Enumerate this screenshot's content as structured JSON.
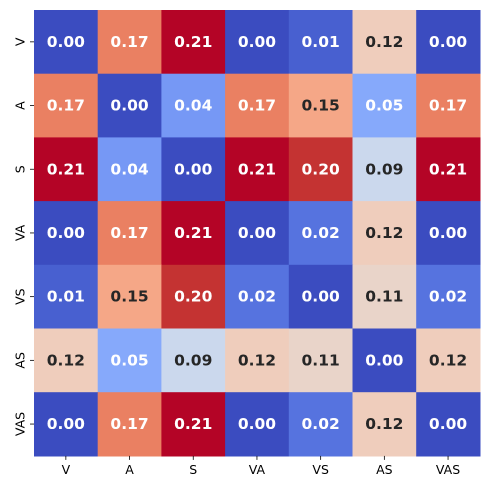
{
  "chart_data": {
    "type": "heatmap",
    "title": "",
    "xlabel": "",
    "ylabel": "",
    "x_categories": [
      "V",
      "A",
      "S",
      "VA",
      "VS",
      "AS",
      "VAS"
    ],
    "y_categories": [
      "V",
      "A",
      "S",
      "VA",
      "VS",
      "AS",
      "VAS"
    ],
    "values": [
      [
        0.0,
        0.17,
        0.21,
        0.0,
        0.01,
        0.12,
        0.0
      ],
      [
        0.17,
        0.0,
        0.04,
        0.17,
        0.15,
        0.05,
        0.17
      ],
      [
        0.21,
        0.04,
        0.0,
        0.21,
        0.2,
        0.09,
        0.21
      ],
      [
        0.0,
        0.17,
        0.21,
        0.0,
        0.02,
        0.12,
        0.0
      ],
      [
        0.01,
        0.15,
        0.2,
        0.02,
        0.0,
        0.11,
        0.02
      ],
      [
        0.12,
        0.05,
        0.09,
        0.12,
        0.11,
        0.0,
        0.12
      ],
      [
        0.0,
        0.17,
        0.21,
        0.0,
        0.02,
        0.12,
        0.0
      ]
    ],
    "value_labels": [
      [
        "0.00",
        "0.17",
        "0.21",
        "0.00",
        "0.01",
        "0.12",
        "0.00"
      ],
      [
        "0.17",
        "0.00",
        "0.04",
        "0.17",
        "0.15",
        "0.05",
        "0.17"
      ],
      [
        "0.21",
        "0.04",
        "0.00",
        "0.21",
        "0.20",
        "0.09",
        "0.21"
      ],
      [
        "0.00",
        "0.17",
        "0.21",
        "0.00",
        "0.02",
        "0.12",
        "0.00"
      ],
      [
        "0.01",
        "0.15",
        "0.20",
        "0.02",
        "0.00",
        "0.11",
        "0.02"
      ],
      [
        "0.12",
        "0.05",
        "0.09",
        "0.12",
        "0.11",
        "0.00",
        "0.12"
      ],
      [
        "0.00",
        "0.17",
        "0.21",
        "0.00",
        "0.02",
        "0.12",
        "0.00"
      ]
    ],
    "colormap": "coolwarm",
    "vmin": 0.0,
    "vmax": 0.21,
    "colorbar": false,
    "grid": false,
    "label_colors": {
      "dark_cells": "#ffffff",
      "light_cells": "#262626"
    }
  }
}
